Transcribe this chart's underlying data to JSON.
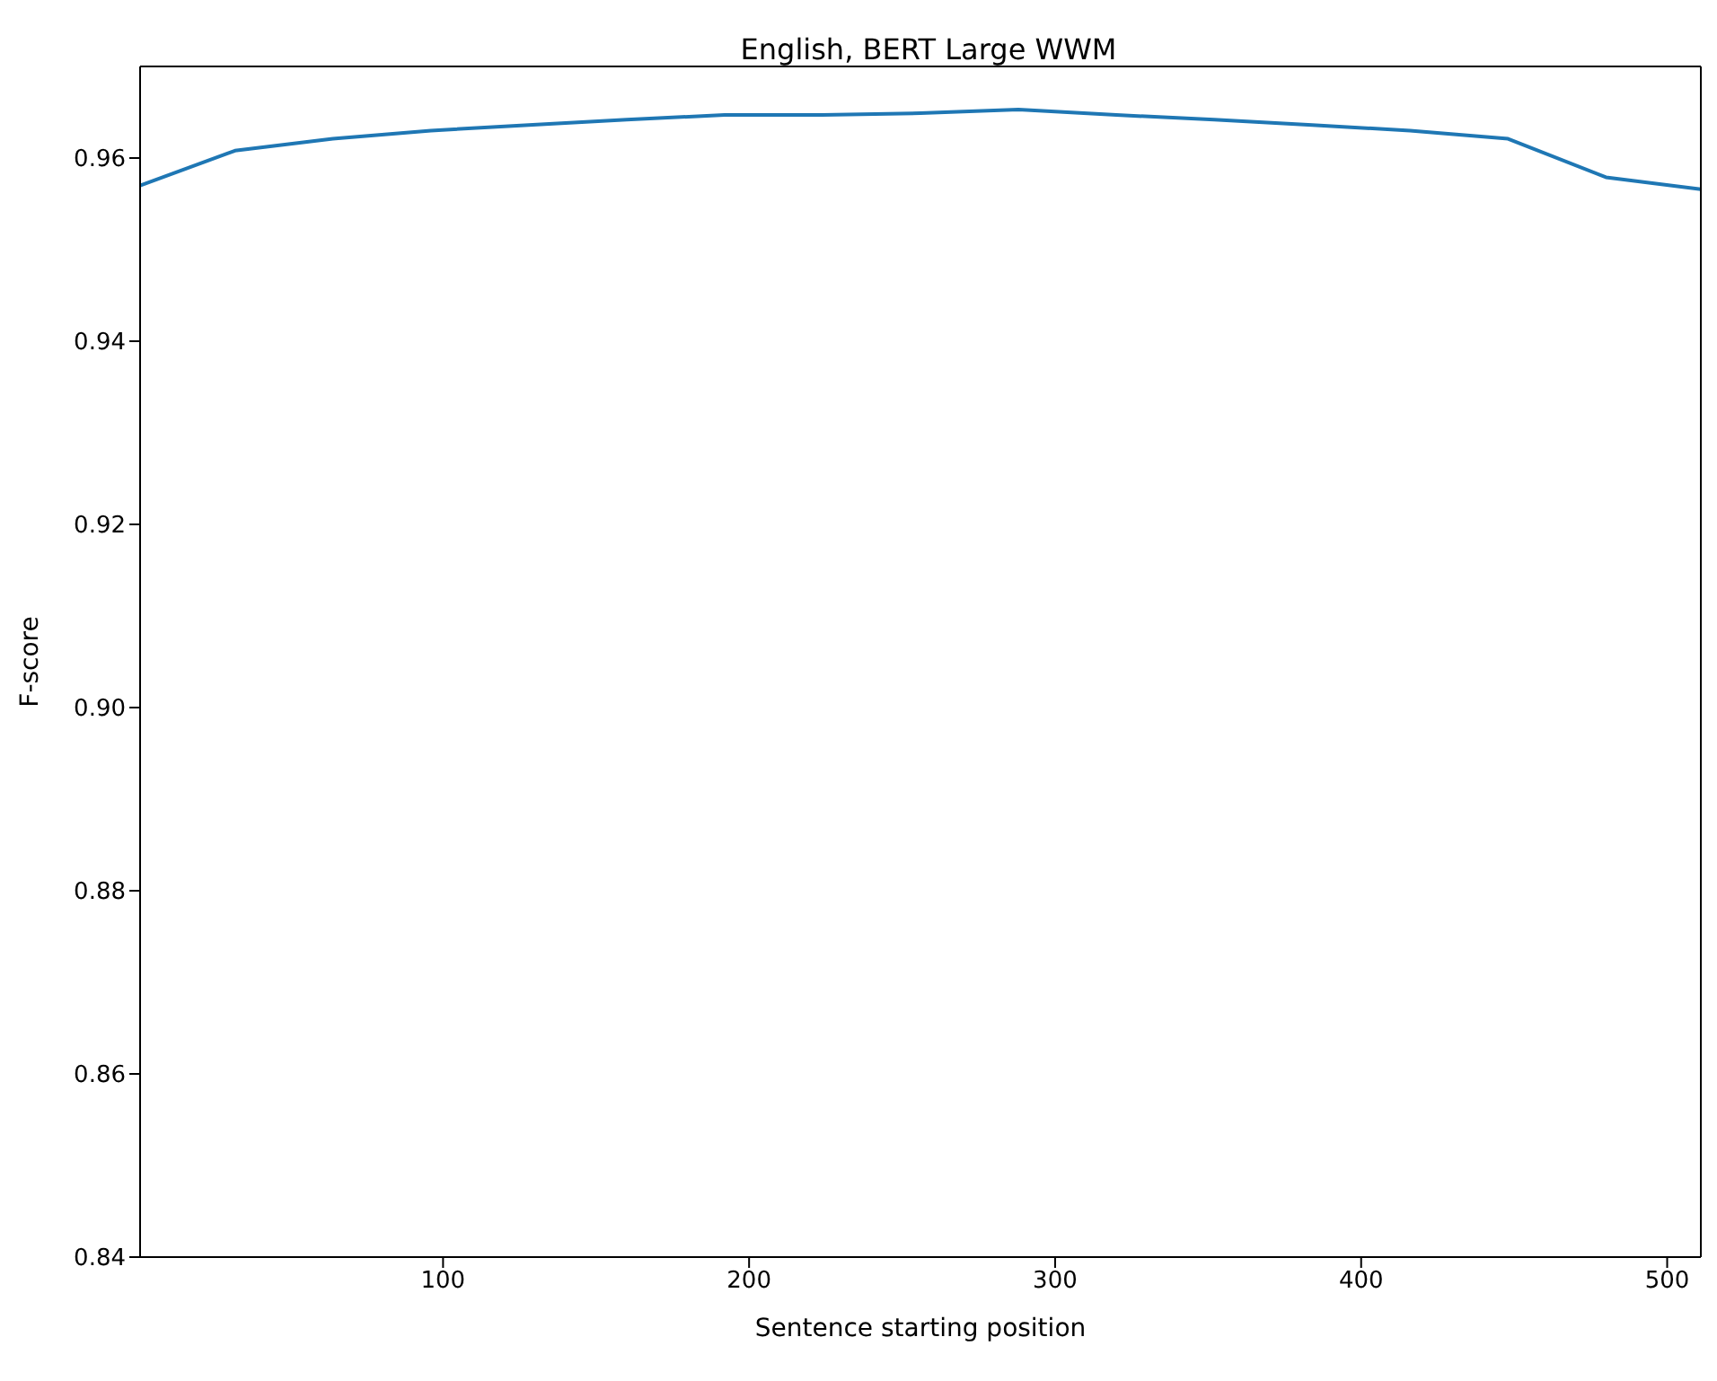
{
  "chart_data": {
    "type": "line",
    "title": "English, BERT Large WWM",
    "xlabel": "Sentence starting position",
    "ylabel": "F-score",
    "x": [
      1,
      32,
      64,
      96,
      128,
      160,
      192,
      224,
      256,
      288,
      320,
      352,
      384,
      416,
      448,
      480,
      511
    ],
    "series": [
      {
        "color": "#1f77b4",
        "values": [
          0.957,
          0.9608,
          0.9621,
          0.963,
          0.9636,
          0.9642,
          0.9647,
          0.9647,
          0.9649,
          0.9653,
          0.9647,
          0.9642,
          0.9636,
          0.963,
          0.9621,
          0.9579,
          0.9566
        ]
      }
    ],
    "xlim": [
      1,
      511
    ],
    "xticks": [
      100,
      200,
      300,
      400,
      500
    ],
    "ylim": [
      0.84,
      0.97
    ],
    "yticks": [
      0.84,
      0.86,
      0.88,
      {
        "value": 0.9,
        "label": "0.90"
      },
      0.92,
      0.94,
      0.96
    ],
    "grid": false,
    "legend": false,
    "marker": "none",
    "line_style": "solid"
  }
}
